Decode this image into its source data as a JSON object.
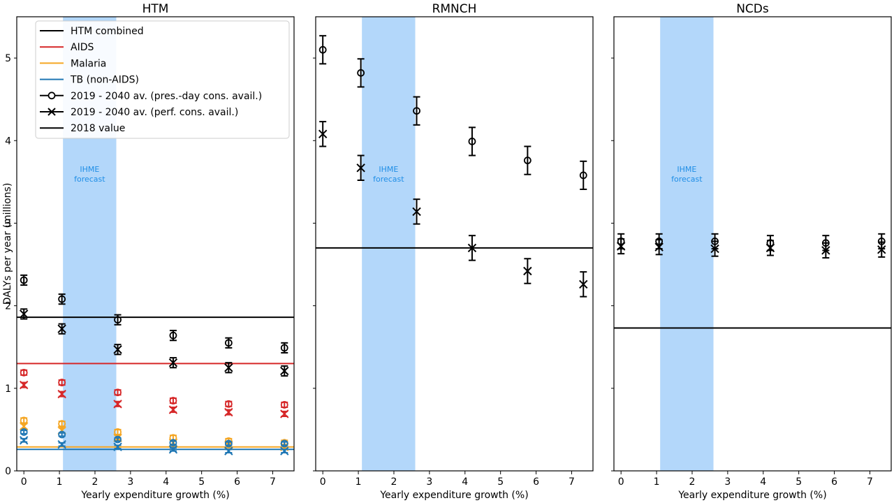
{
  "ylabel": "DALYs per year (millions)",
  "colors": {
    "combined": "#000000",
    "aids": "#d62728",
    "malaria": "#f5a623",
    "tb": "#1f77b4",
    "band": "#b3d7fa",
    "band_text": "#1f8ee6"
  },
  "legend": [
    {
      "label": "HTM combined",
      "kind": "line",
      "color": "#000000"
    },
    {
      "label": "AIDS",
      "kind": "line",
      "color": "#d62728"
    },
    {
      "label": "Malaria",
      "kind": "line",
      "color": "#f5a623"
    },
    {
      "label": "TB (non-AIDS)",
      "kind": "line",
      "color": "#1f77b4"
    },
    {
      "label": "2019 - 2040 av. (pres.-day cons. avail.)",
      "kind": "circle",
      "color": "#000000"
    },
    {
      "label": "2019 - 2040 av. (perf. cons. avail.)",
      "kind": "cross",
      "color": "#000000"
    },
    {
      "label": "2018 value",
      "kind": "line",
      "color": "#000000"
    }
  ],
  "chart_data": [
    {
      "type": "scatter",
      "title": "HTM",
      "xlabel": "Yearly expenditure growth (%)",
      "ylabel": "DALYs per year (millions)",
      "xlim": [
        -0.2,
        7.6
      ],
      "ylim": [
        0,
        5.5
      ],
      "xticks": [
        "0",
        "1",
        "2",
        "3",
        "4",
        "5",
        "6",
        "7"
      ],
      "yticks": [
        "0",
        "1",
        "2",
        "3",
        "4",
        "5"
      ],
      "show_ytick_labels": true,
      "band": {
        "x0": 1.1,
        "x1": 2.6,
        "label": [
          "IHME",
          "forecast"
        ]
      },
      "x": [
        0,
        1.07,
        2.64,
        4.2,
        5.76,
        7.33
      ],
      "series": [
        {
          "name": "HTM combined",
          "color": "#000000",
          "baseline": 1.86,
          "circle": [
            2.31,
            2.08,
            1.83,
            1.64,
            1.55,
            1.49
          ],
          "circle_err": 0.06,
          "cross": [
            1.9,
            1.72,
            1.47,
            1.31,
            1.25,
            1.21
          ],
          "cross_err": 0.06
        },
        {
          "name": "AIDS",
          "color": "#d62728",
          "baseline": 1.3,
          "circle": [
            1.19,
            1.07,
            0.95,
            0.85,
            0.81,
            0.8
          ],
          "circle_err": 0.03,
          "cross": [
            1.04,
            0.93,
            0.81,
            0.74,
            0.71,
            0.69
          ],
          "cross_err": 0.03
        },
        {
          "name": "Malaria",
          "color": "#f5a623",
          "baseline": 0.29,
          "circle": [
            0.61,
            0.57,
            0.47,
            0.4,
            0.36,
            0.34
          ],
          "circle_err": 0.03,
          "cross": [
            0.54,
            0.49,
            0.4,
            0.34,
            0.31,
            0.29
          ],
          "cross_err": 0.03
        },
        {
          "name": "TB (non-AIDS)",
          "color": "#1f77b4",
          "baseline": 0.26,
          "circle": [
            0.47,
            0.44,
            0.38,
            0.34,
            0.33,
            0.33
          ],
          "circle_err": 0.02,
          "cross": [
            0.37,
            0.32,
            0.29,
            0.26,
            0.24,
            0.24
          ],
          "cross_err": 0.02
        }
      ]
    },
    {
      "type": "scatter",
      "title": "RMNCH",
      "xlabel": "Yearly expenditure growth (%)",
      "xlim": [
        -0.2,
        7.6
      ],
      "ylim": [
        0,
        5.5
      ],
      "xticks": [
        "0",
        "1",
        "2",
        "3",
        "4",
        "5",
        "6",
        "7"
      ],
      "show_ytick_labels": false,
      "band": {
        "x0": 1.1,
        "x1": 2.6,
        "label": [
          "IHME",
          "forecast"
        ]
      },
      "x": [
        0,
        1.07,
        2.64,
        4.2,
        5.76,
        7.33
      ],
      "series": [
        {
          "name": "RMNCH",
          "color": "#000000",
          "baseline": 2.7,
          "circle": [
            5.1,
            4.82,
            4.36,
            3.99,
            3.76,
            3.58
          ],
          "circle_err": 0.17,
          "cross": [
            4.08,
            3.67,
            3.14,
            2.7,
            2.42,
            2.26
          ],
          "cross_err": 0.15
        }
      ]
    },
    {
      "type": "scatter",
      "title": "NCDs",
      "xlabel": "Yearly expenditure growth (%)",
      "xlim": [
        -0.2,
        7.6
      ],
      "ylim": [
        0,
        5.5
      ],
      "xticks": [
        "0",
        "1",
        "2",
        "3",
        "4",
        "5",
        "6",
        "7"
      ],
      "show_ytick_labels": false,
      "band": {
        "x0": 1.1,
        "x1": 2.6,
        "label": [
          "IHME",
          "forecast"
        ]
      },
      "x": [
        0,
        1.07,
        2.64,
        4.2,
        5.76,
        7.33
      ],
      "series": [
        {
          "name": "NCDs",
          "color": "#000000",
          "baseline": 1.73,
          "circle": [
            2.78,
            2.78,
            2.78,
            2.76,
            2.76,
            2.78
          ],
          "circle_err": 0.09,
          "cross": [
            2.72,
            2.71,
            2.69,
            2.7,
            2.67,
            2.68
          ],
          "cross_err": 0.09
        }
      ]
    }
  ]
}
